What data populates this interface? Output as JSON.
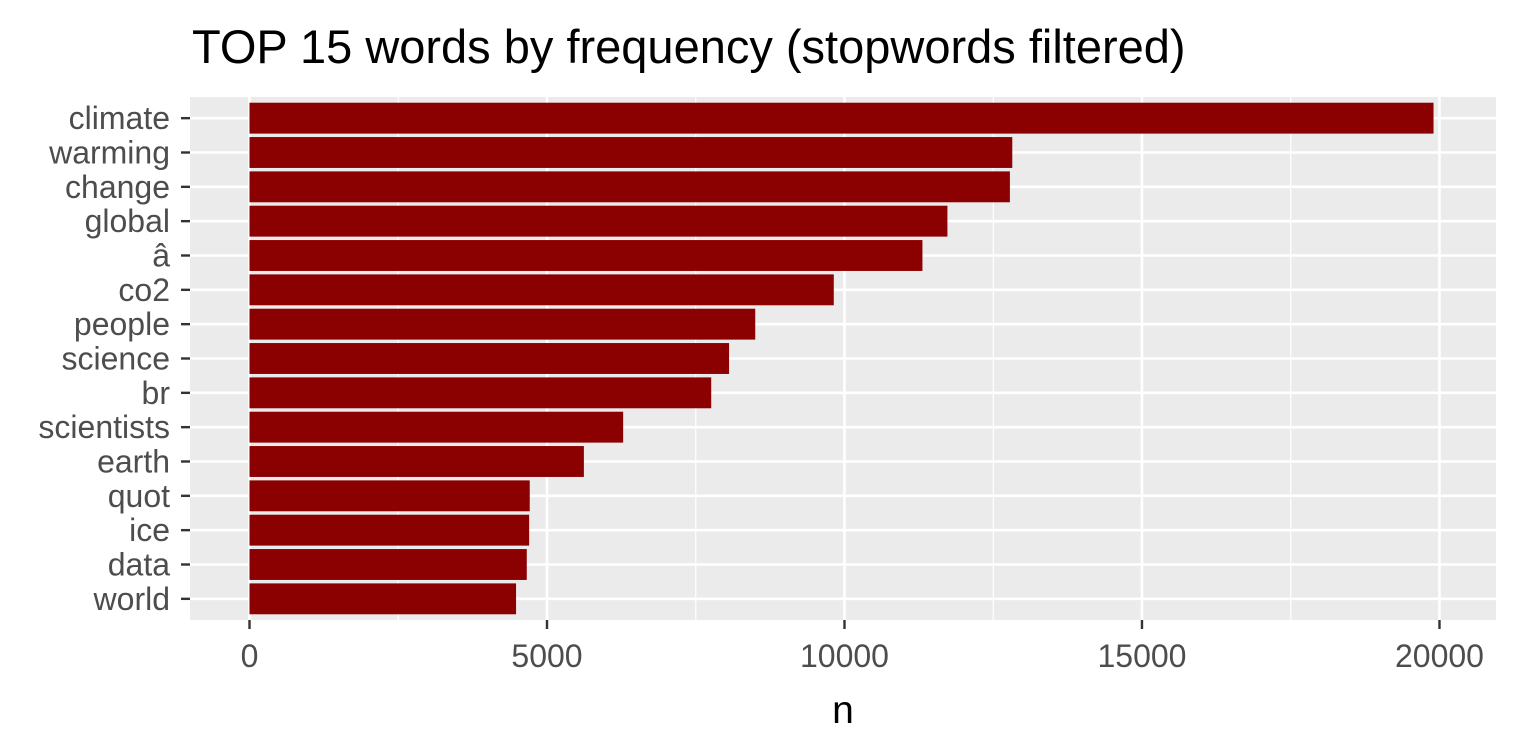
{
  "chart_data": {
    "type": "bar",
    "orientation": "horizontal",
    "title": "TOP 15 words by frequency (stopwords filtered)",
    "xlabel": "n",
    "ylabel": "",
    "categories": [
      "climate",
      "warming",
      "change",
      "global",
      "â",
      "co2",
      "people",
      "science",
      "br",
      "scientists",
      "earth",
      "quot",
      "ice",
      "data",
      "world"
    ],
    "values": [
      19900,
      12820,
      12780,
      11730,
      11310,
      9820,
      8500,
      8060,
      7760,
      6280,
      5620,
      4710,
      4700,
      4660,
      4480
    ],
    "xlim": [
      -1000,
      20950
    ],
    "xticks": [
      0,
      5000,
      10000,
      15000,
      20000
    ],
    "xtick_labels": [
      "0",
      "5000",
      "10000",
      "15000",
      "20000"
    ],
    "grid": true,
    "legend": "none",
    "colors": {
      "bar": "#8b0000",
      "panel_background": "#ebebeb",
      "grid_major": "#ffffff",
      "grid_minor": "#ffffff",
      "tick_text": "#4d4d4d",
      "title_text": "#000000"
    }
  }
}
